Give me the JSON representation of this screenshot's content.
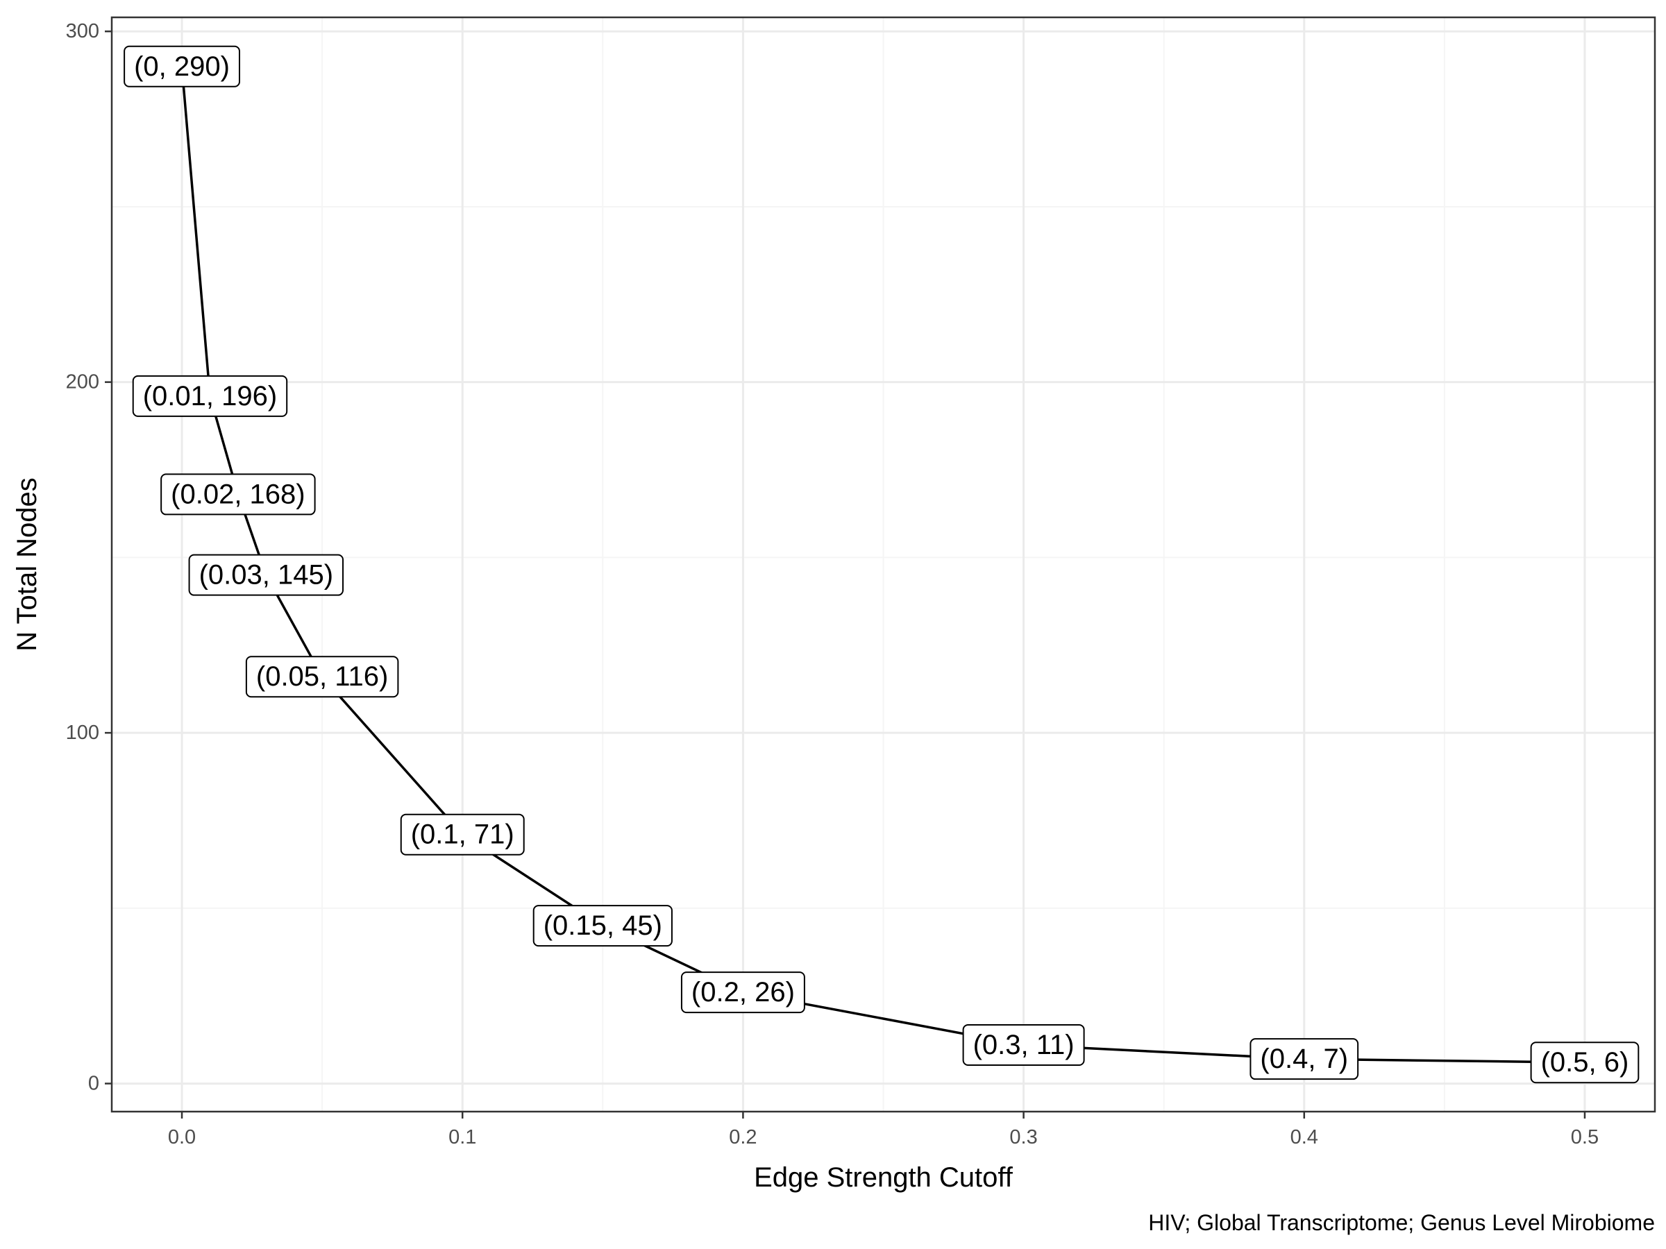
{
  "chart_data": {
    "type": "line",
    "x": [
      0,
      0.01,
      0.02,
      0.03,
      0.05,
      0.1,
      0.15,
      0.2,
      0.3,
      0.4,
      0.5
    ],
    "y": [
      290,
      196,
      168,
      145,
      116,
      71,
      45,
      26,
      11,
      7,
      6
    ],
    "point_labels": [
      "(0, 290)",
      "(0.01, 196)",
      "(0.02, 168)",
      "(0.03, 145)",
      "(0.05, 116)",
      "(0.1, 71)",
      "(0.15, 45)",
      "(0.2, 26)",
      "(0.3, 11)",
      "(0.4, 7)",
      "(0.5, 6)"
    ],
    "xlabel": "Edge Strength Cutoff",
    "ylabel": "N Total Nodes",
    "caption": "HIV; Global Transcriptome; Genus Level Mirobiome",
    "xlim": [
      -0.025,
      0.525
    ],
    "ylim": [
      -8,
      304
    ],
    "x_ticks": [
      0,
      0.1,
      0.2,
      0.3,
      0.4,
      0.5
    ],
    "x_tick_labels": [
      "0.0",
      "0.1",
      "0.2",
      "0.3",
      "0.4",
      "0.5"
    ],
    "y_ticks": [
      0,
      100,
      200,
      300
    ],
    "y_tick_labels": [
      "0",
      "100",
      "200",
      "300"
    ],
    "x_minor_ticks": [
      0.05,
      0.15,
      0.25,
      0.35,
      0.45
    ],
    "y_minor_ticks": [
      50,
      150,
      250
    ],
    "grid": true,
    "legend": "none",
    "colors": {
      "line": "#000000",
      "panel_border": "#333333",
      "grid_major": "#ebebeb",
      "grid_minor": "#f5f5f5",
      "label_fill": "#ffffff",
      "label_border": "#000000",
      "tick_text": "#4d4d4d"
    }
  }
}
